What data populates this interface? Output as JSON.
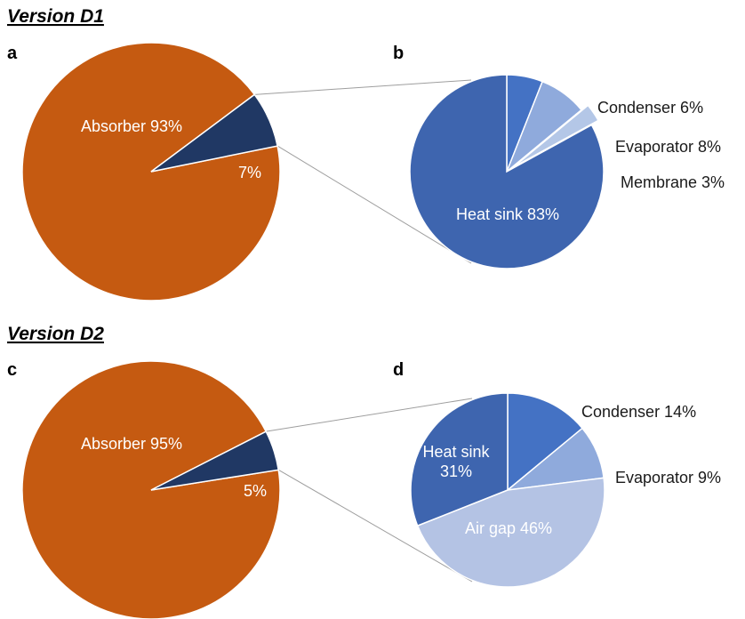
{
  "colors": {
    "absorber": "#c55a11",
    "other": "#203864",
    "heat_sink": "#3e65af",
    "condenser": "#4472c4",
    "evaporator": "#8faadc",
    "membrane": "#b4c7e7",
    "air_gap": "#b4c3e4",
    "connector": "#9e9e9e"
  },
  "sections": [
    {
      "title": "Version D1"
    },
    {
      "title": "Version D2"
    }
  ],
  "chart_data": [
    {
      "type": "pie",
      "panel": "a",
      "section": "Version D1",
      "slices": [
        {
          "label": "Absorber 93%",
          "value": 93,
          "color": "#c55a11"
        },
        {
          "label": "7%",
          "value": 7,
          "color": "#203864"
        }
      ]
    },
    {
      "type": "pie",
      "panel": "b",
      "section": "Version D1",
      "slices": [
        {
          "label": "Condenser 6%",
          "value": 6,
          "color": "#4472c4"
        },
        {
          "label": "Evaporator 8%",
          "value": 8,
          "color": "#8faadc"
        },
        {
          "label": "Membrane 3%",
          "value": 3,
          "color": "#b4c7e7"
        },
        {
          "label": "Heat sink 83%",
          "value": 83,
          "color": "#3e65af"
        }
      ]
    },
    {
      "type": "pie",
      "panel": "c",
      "section": "Version D2",
      "slices": [
        {
          "label": "Absorber 95%",
          "value": 95,
          "color": "#c55a11"
        },
        {
          "label": "5%",
          "value": 5,
          "color": "#203864"
        }
      ]
    },
    {
      "type": "pie",
      "panel": "d",
      "section": "Version D2",
      "slices": [
        {
          "label": "Condenser 14%",
          "value": 14,
          "color": "#4472c4"
        },
        {
          "label": "Evaporator 9%",
          "value": 9,
          "color": "#8faadc"
        },
        {
          "label": "Air gap 46%",
          "value": 46,
          "color": "#b4c3e4"
        },
        {
          "label": "Heat sink 31%",
          "value": 31,
          "color": "#3e65af"
        }
      ]
    }
  ]
}
